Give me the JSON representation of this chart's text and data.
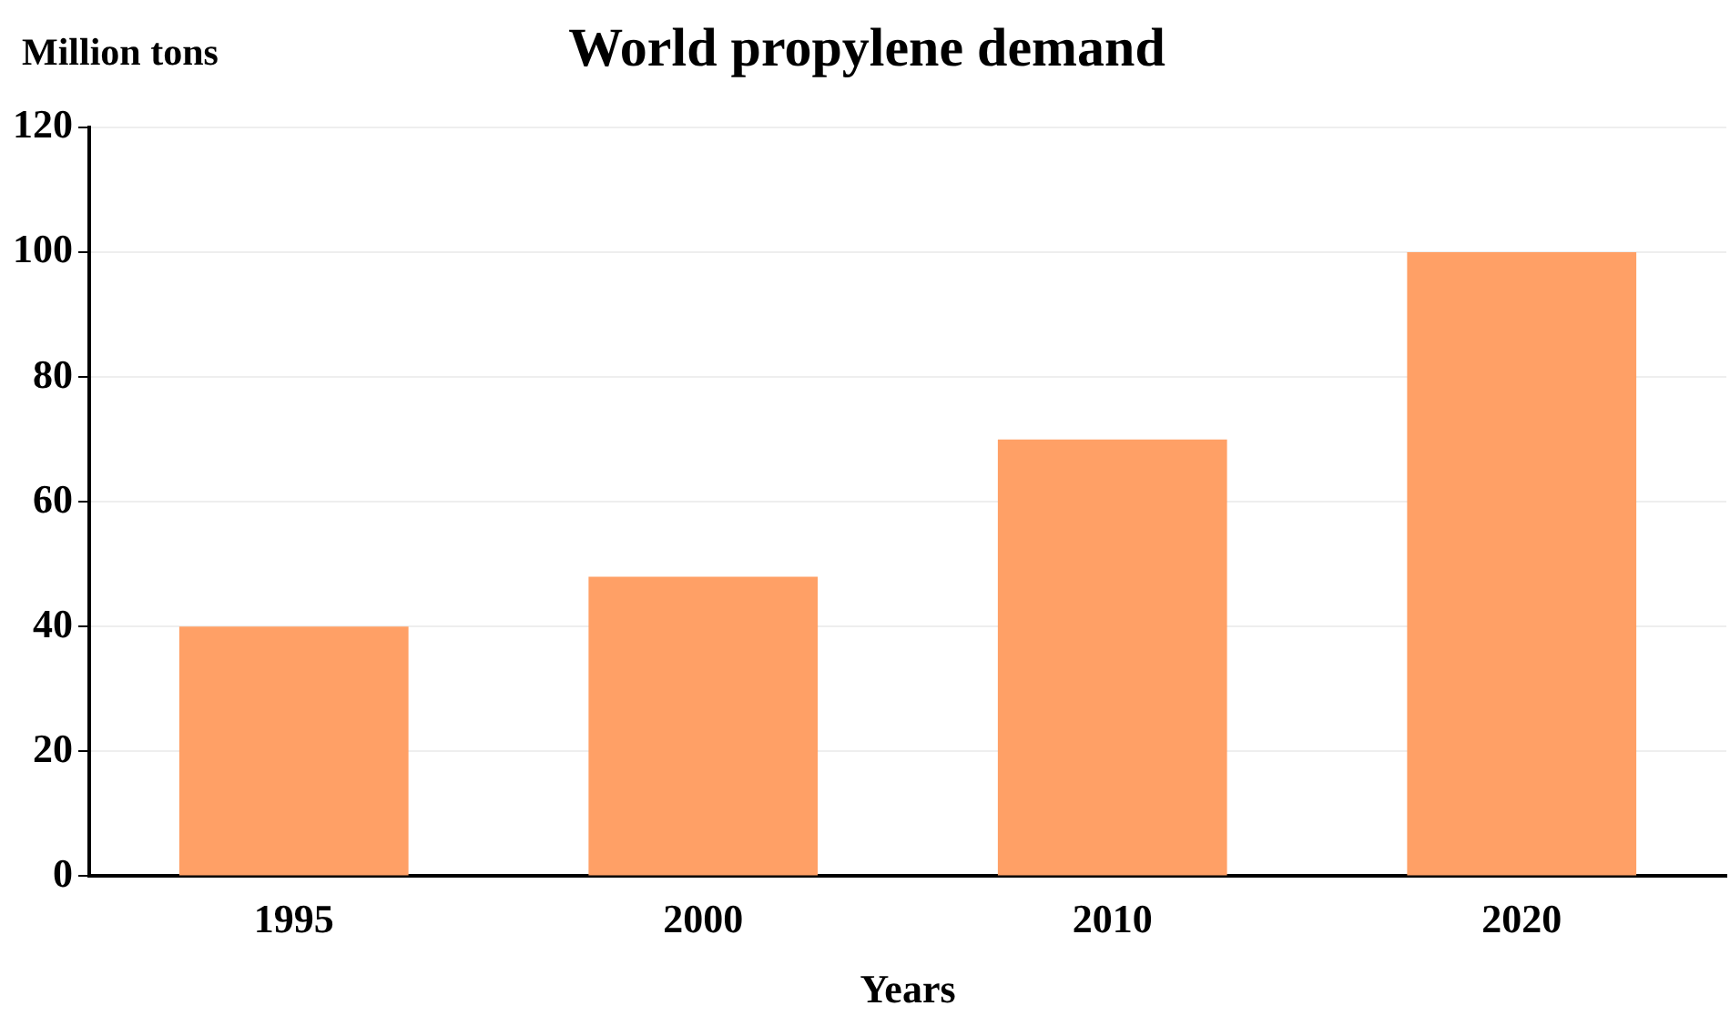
{
  "chart_data": {
    "type": "bar",
    "title": "World propylene demand",
    "xlabel": "Years",
    "ylabel": "Million tons",
    "categories": [
      "1995",
      "2000",
      "2010",
      "2020"
    ],
    "values": [
      40,
      48,
      70,
      100
    ],
    "color": "#ffa066",
    "ylim": [
      0,
      120
    ],
    "yticks": [
      0,
      20,
      40,
      60,
      80,
      100,
      120
    ],
    "grid": "y",
    "legend": false
  }
}
